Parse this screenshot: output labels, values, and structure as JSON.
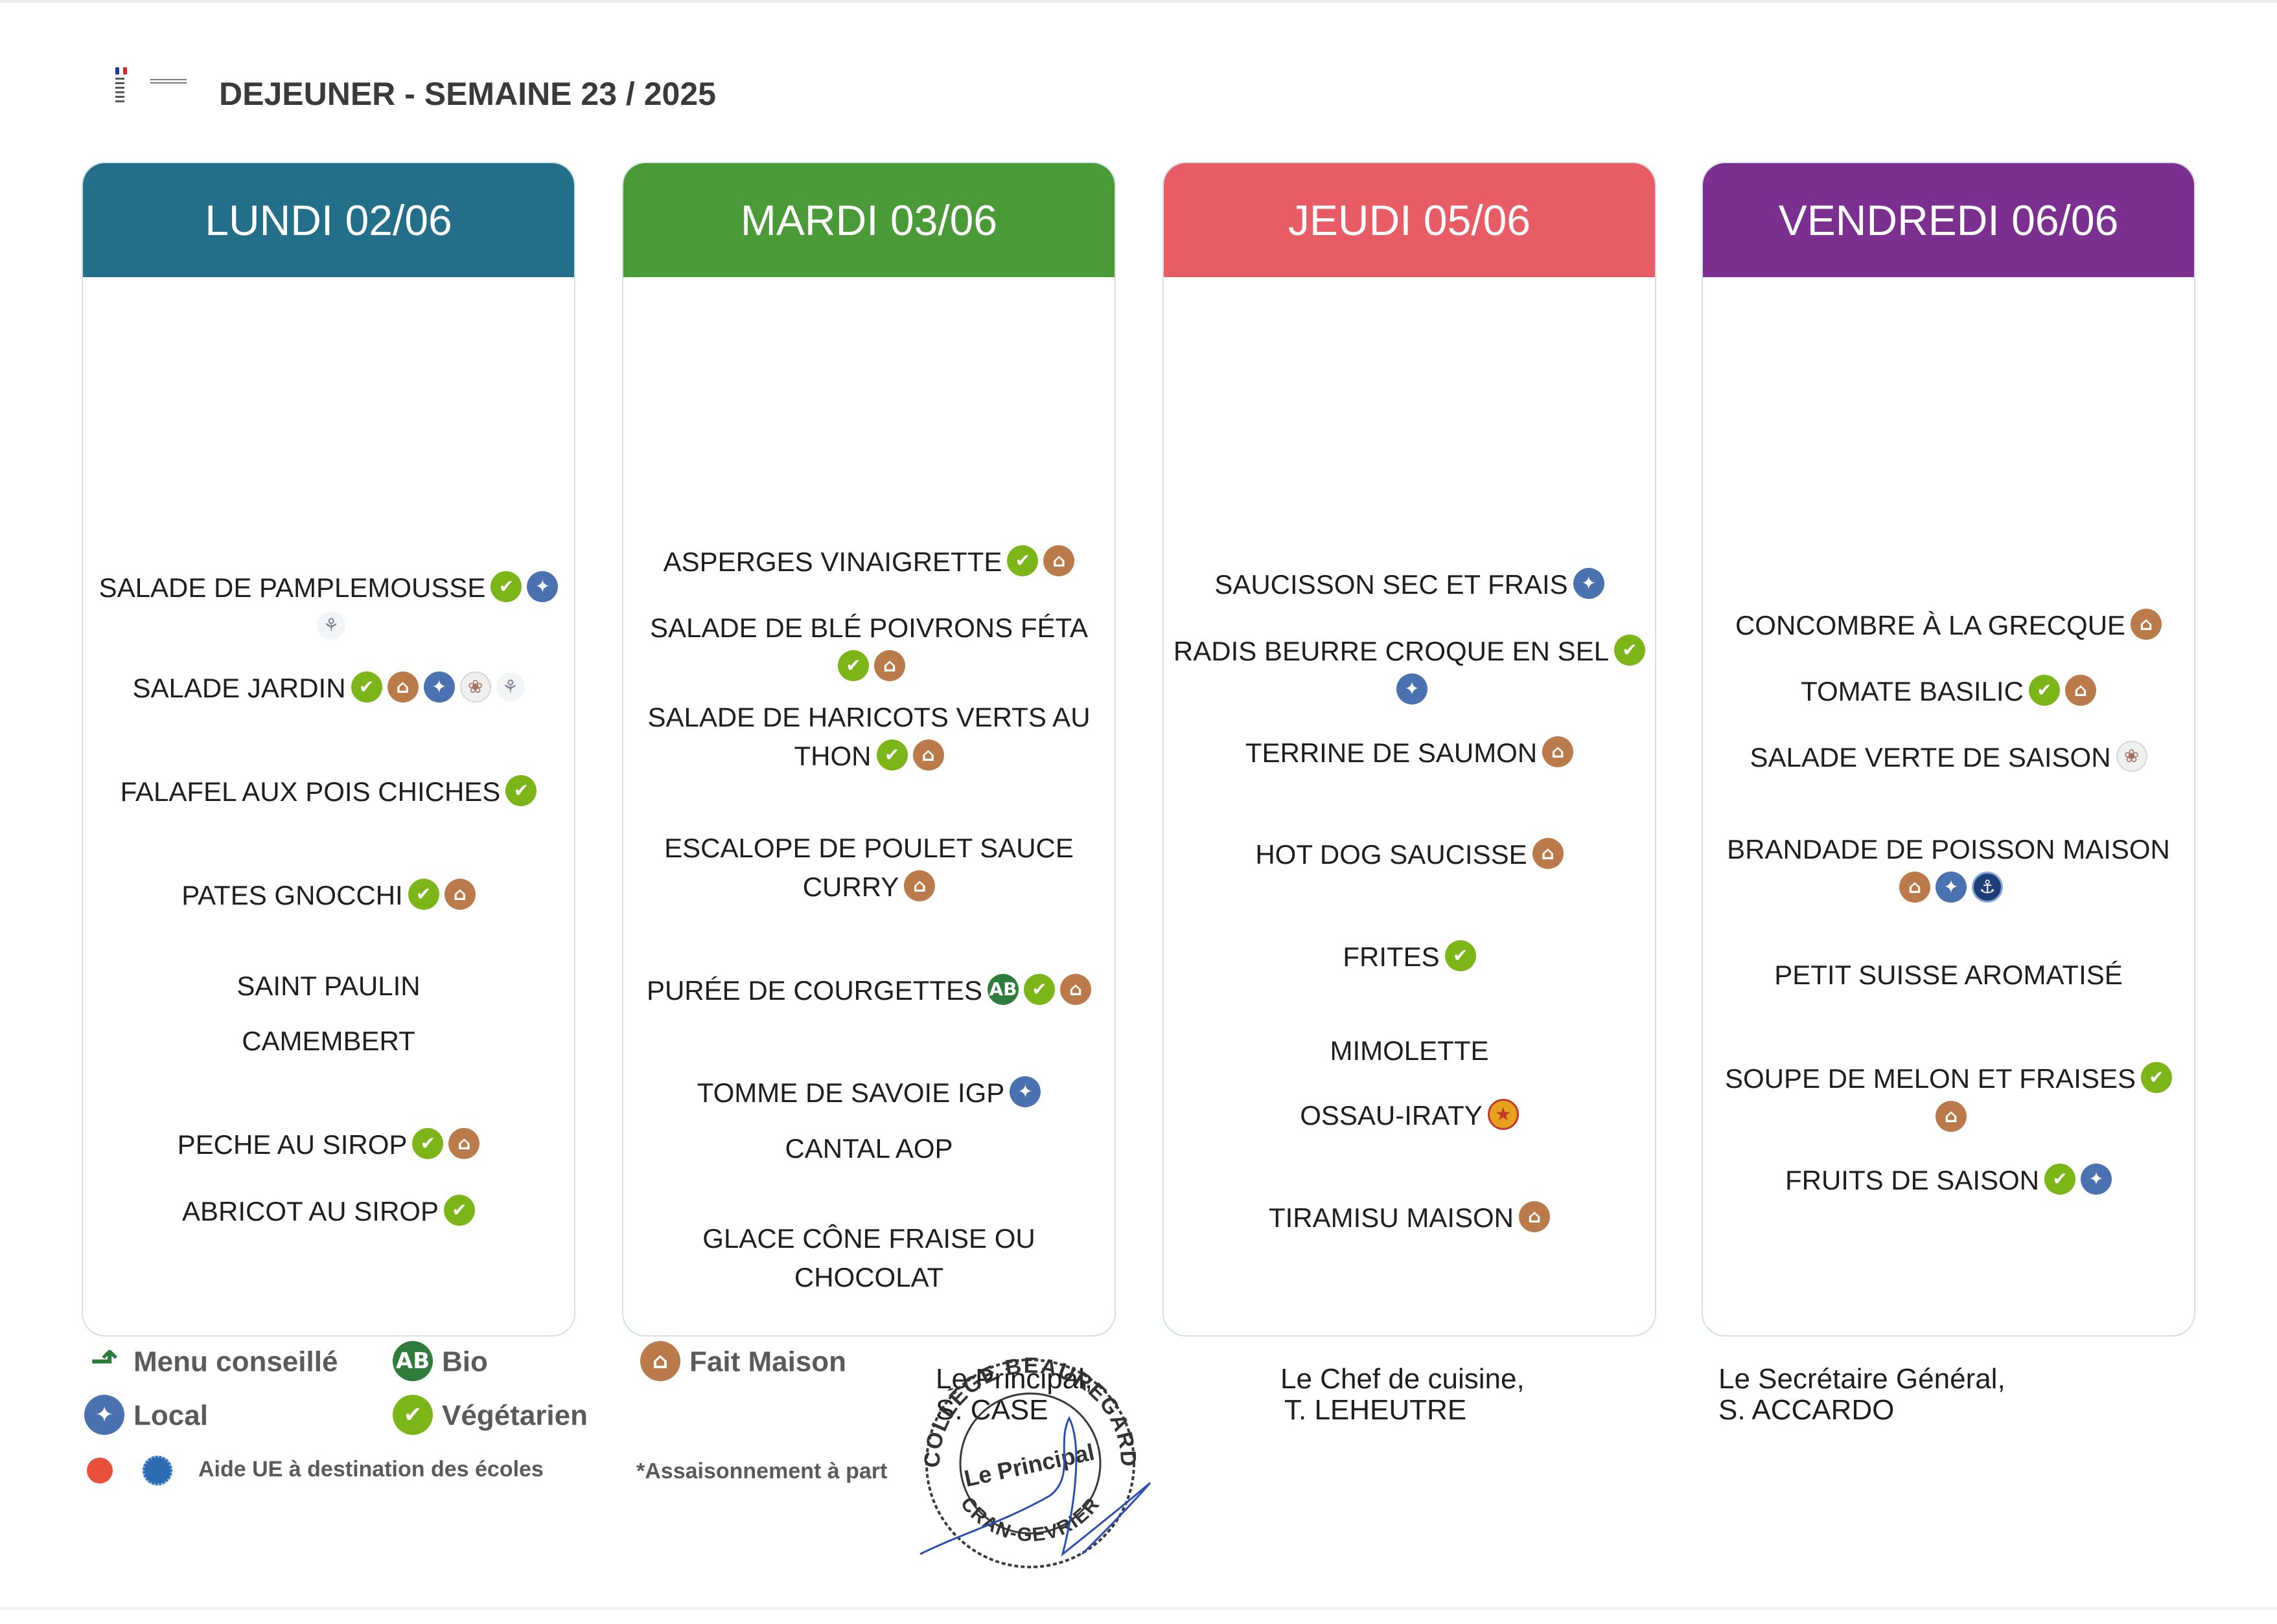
{
  "header": {
    "title": "DEJEUNER - SEMAINE 23 / 2025",
    "logo_icon": "marianne-logo"
  },
  "days": [
    {
      "label": "LUNDI 02/06",
      "color": "#236f8a",
      "items": [
        {
          "name": "SALADE DE PAMPLEMOUSSE",
          "icons": [
            "vegetarien",
            "local",
            "aide-ue"
          ]
        },
        {
          "name": "SALADE JARDIN",
          "icons": [
            "vegetarien",
            "fait-maison",
            "local",
            "aide-ue-fruits",
            "aide-ue"
          ]
        },
        {
          "name": "FALAFEL AUX POIS CHICHES",
          "icons": [
            "vegetarien"
          ]
        },
        {
          "name": "PATES GNOCCHI",
          "icons": [
            "vegetarien",
            "fait-maison"
          ]
        },
        {
          "name": "SAINT PAULIN",
          "icons": []
        },
        {
          "name": "CAMEMBERT",
          "icons": []
        },
        {
          "name": "PECHE AU SIROP",
          "icons": [
            "vegetarien",
            "fait-maison"
          ]
        },
        {
          "name": "ABRICOT AU SIROP",
          "icons": [
            "vegetarien"
          ]
        }
      ]
    },
    {
      "label": "MARDI 03/06",
      "color": "#4a9a37",
      "items": [
        {
          "name": "ASPERGES VINAIGRETTE",
          "icons": [
            "vegetarien",
            "fait-maison"
          ]
        },
        {
          "name": "SALADE DE BLÉ POIVRONS FÉTA",
          "icons": [
            "vegetarien",
            "fait-maison"
          ]
        },
        {
          "name": "SALADE DE HARICOTS VERTS AU\nTHON",
          "icons": [
            "vegetarien",
            "fait-maison"
          ]
        },
        {
          "name": "ESCALOPE DE POULET SAUCE\nCURRY",
          "icons": [
            "fait-maison"
          ]
        },
        {
          "name": "PURÉE DE COURGETTES",
          "icons": [
            "bio",
            "vegetarien",
            "fait-maison"
          ]
        },
        {
          "name": "TOMME DE SAVOIE IGP",
          "icons": [
            "local"
          ]
        },
        {
          "name": "CANTAL AOP",
          "icons": []
        },
        {
          "name": "GLACE CÔNE FRAISE OU CHOCOLAT",
          "icons": []
        }
      ]
    },
    {
      "label": "JEUDI 05/06",
      "color": "#e85c66",
      "items": [
        {
          "name": "SAUCISSON SEC ET FRAIS",
          "icons": [
            "local"
          ]
        },
        {
          "name": "RADIS BEURRE CROQUE EN SEL",
          "icons": [
            "vegetarien",
            "local"
          ]
        },
        {
          "name": "TERRINE DE SAUMON",
          "icons": [
            "fait-maison"
          ]
        },
        {
          "name": "HOT DOG SAUCISSE",
          "icons": [
            "fait-maison"
          ]
        },
        {
          "name": "FRITES",
          "icons": [
            "vegetarien"
          ]
        },
        {
          "name": "MIMOLETTE",
          "icons": []
        },
        {
          "name": "OSSAU-IRATY",
          "icons": [
            "aop"
          ]
        },
        {
          "name": "TIRAMISU MAISON",
          "icons": [
            "fait-maison"
          ]
        }
      ]
    },
    {
      "label": "VENDREDI 06/06",
      "color": "#7b2f8e",
      "items": [
        {
          "name": "CONCOMBRE À LA GRECQUE",
          "icons": [
            "fait-maison"
          ]
        },
        {
          "name": "TOMATE BASILIC",
          "icons": [
            "vegetarien",
            "fait-maison"
          ]
        },
        {
          "name": "SALADE VERTE DE SAISON",
          "icons": [
            "aide-ue-fruits"
          ]
        },
        {
          "name": "BRANDADE DE POISSON MAISON",
          "icons": [
            "fait-maison",
            "local",
            "peche-durable"
          ]
        },
        {
          "name": "PETIT SUISSE AROMATISÉ",
          "icons": []
        },
        {
          "name": "SOUPE DE MELON ET FRAISES",
          "icons": [
            "vegetarien",
            "fait-maison"
          ]
        },
        {
          "name": "FRUITS DE SAISON",
          "icons": [
            "vegetarien",
            "local"
          ]
        }
      ]
    }
  ],
  "legend": {
    "menu_conseille": "Menu conseillé",
    "bio": "Bio",
    "fait_maison": "Fait Maison",
    "local": "Local",
    "vegetarien": "Végétarien",
    "aide_ue": "Aide UE à destination des écoles",
    "assaisonnement": "*Assaisonnement à part"
  },
  "signatures": {
    "principal_title": "Le Principal,",
    "principal_name": "S. CASE",
    "chef_title": "Le Chef de cuisine,",
    "chef_name": "T. LEHEUTRE",
    "secretaire_title": "Le Secrétaire Général,",
    "secretaire_name": "S. ACCARDO",
    "stamp_top": "COLLÈGE BEAUREGARD",
    "stamp_center": "Le Principal",
    "stamp_bottom": "CRAN-GEVRIER"
  },
  "colors": {
    "vegetarien": "#7cb518",
    "fait_maison": "#bb7a4a",
    "local": "#4a72b0",
    "bio": "#2f7d3c"
  }
}
